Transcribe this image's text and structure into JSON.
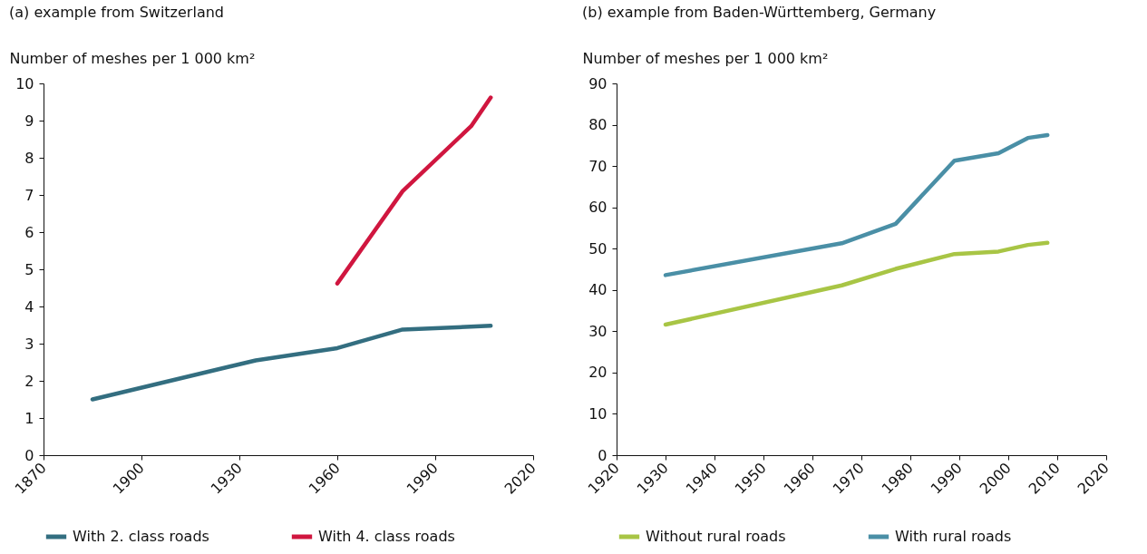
{
  "chart_data": [
    {
      "type": "line",
      "title": "(a) example from Switzerland",
      "ylabel": "Number of meshes per 1 000 km²",
      "xlim": [
        1870,
        2020
      ],
      "xticks": [
        1870,
        1900,
        1930,
        1960,
        1990,
        2020
      ],
      "ylim": [
        0,
        10
      ],
      "yticks": [
        0,
        1,
        2,
        3,
        4,
        5,
        6,
        7,
        8,
        9,
        10
      ],
      "grid": false,
      "legend": "bottom",
      "series": [
        {
          "name": "With 2. class roads",
          "color": "#336e80",
          "x": [
            1885,
            1935,
            1960,
            1980,
            2007
          ],
          "values": [
            1.5,
            2.55,
            2.88,
            3.38,
            3.48
          ]
        },
        {
          "name": "With 4. class roads",
          "color": "#d0163f",
          "x": [
            1960,
            1980,
            2001,
            2007
          ],
          "values": [
            4.62,
            7.1,
            8.85,
            9.62
          ]
        }
      ]
    },
    {
      "type": "line",
      "title": "(b) example from Baden-Württemberg, Germany",
      "ylabel": "Number of meshes per 1 000 km²",
      "xlim": [
        1920,
        2020
      ],
      "xticks": [
        1920,
        1930,
        1940,
        1950,
        1960,
        1970,
        1980,
        1990,
        2000,
        2010,
        2020
      ],
      "ylim": [
        0,
        90
      ],
      "yticks": [
        0,
        10,
        20,
        30,
        40,
        50,
        60,
        70,
        80,
        90
      ],
      "grid": false,
      "legend": "bottom",
      "series": [
        {
          "name": "Without rural roads",
          "color": "#a8c545",
          "x": [
            1930,
            1966,
            1977,
            1989,
            1998,
            2004,
            2008
          ],
          "values": [
            31.6,
            41.1,
            45.1,
            48.7,
            49.3,
            50.9,
            51.4
          ]
        },
        {
          "name": "With rural roads",
          "color": "#4a8fa6",
          "x": [
            1930,
            1966,
            1977,
            1989,
            1998,
            2004,
            2008
          ],
          "values": [
            43.6,
            51.3,
            56,
            71.3,
            73.1,
            76.8,
            77.5
          ]
        }
      ]
    }
  ]
}
